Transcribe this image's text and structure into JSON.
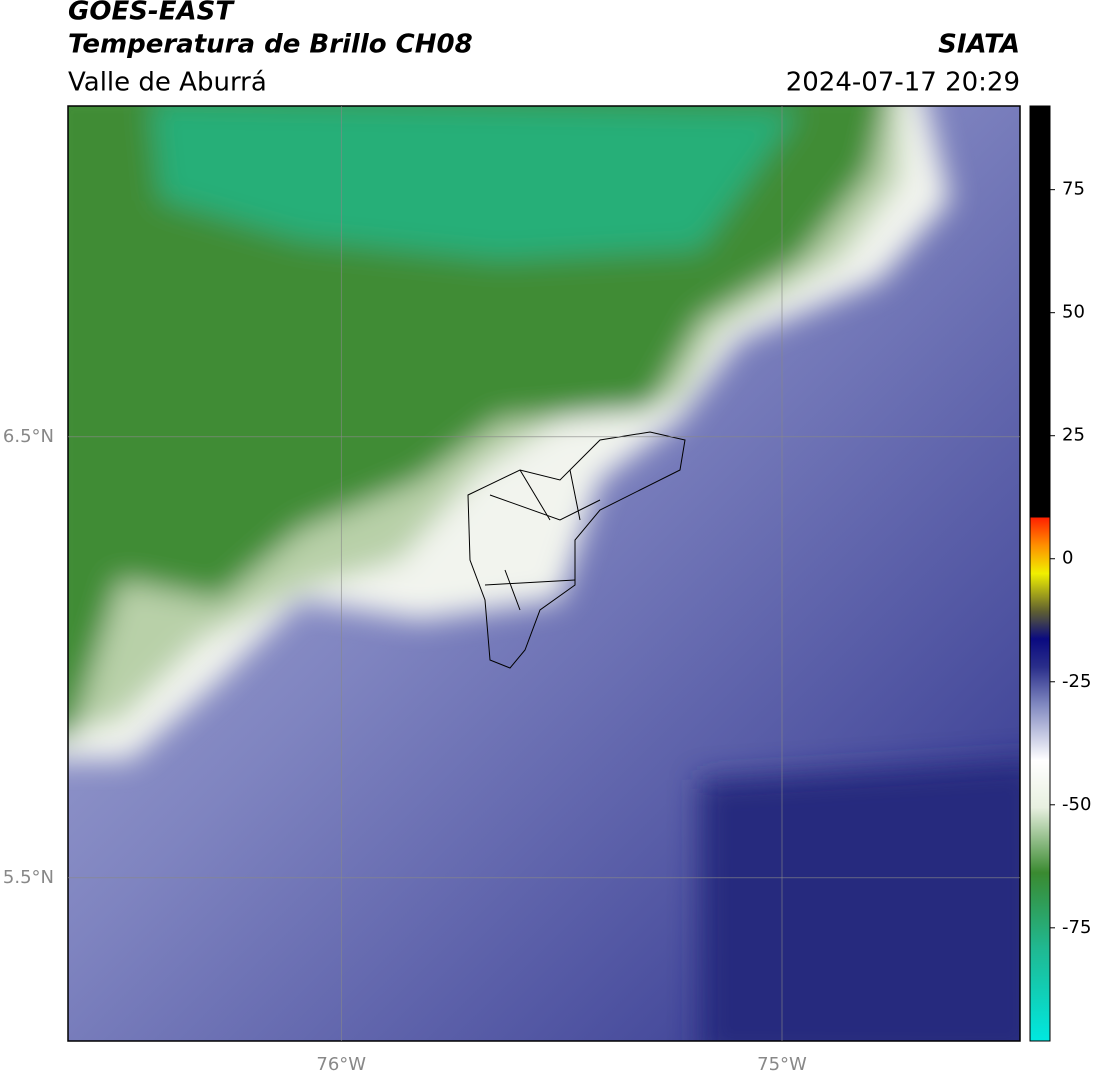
{
  "header": {
    "satellite": "GOES-EAST",
    "product": "Temperatura de Brillo CH08",
    "region": "Valle de Aburrá",
    "source": "SIATA",
    "datetime": "2024-07-17 20:29"
  },
  "map": {
    "xlim": [
      -76.62,
      -74.46
    ],
    "ylim": [
      5.13,
      7.25
    ],
    "xticks": [
      {
        "value": -76,
        "label": "76°W"
      },
      {
        "value": -75,
        "label": "75°W"
      }
    ],
    "yticks": [
      {
        "value": 6.5,
        "label": "6.5°N"
      },
      {
        "value": 5.5,
        "label": "5.5°N"
      }
    ]
  },
  "colorbar": {
    "lim": [
      -98,
      92
    ],
    "ticks": [
      75,
      50,
      25,
      0,
      -25,
      -50,
      -75
    ]
  }
}
